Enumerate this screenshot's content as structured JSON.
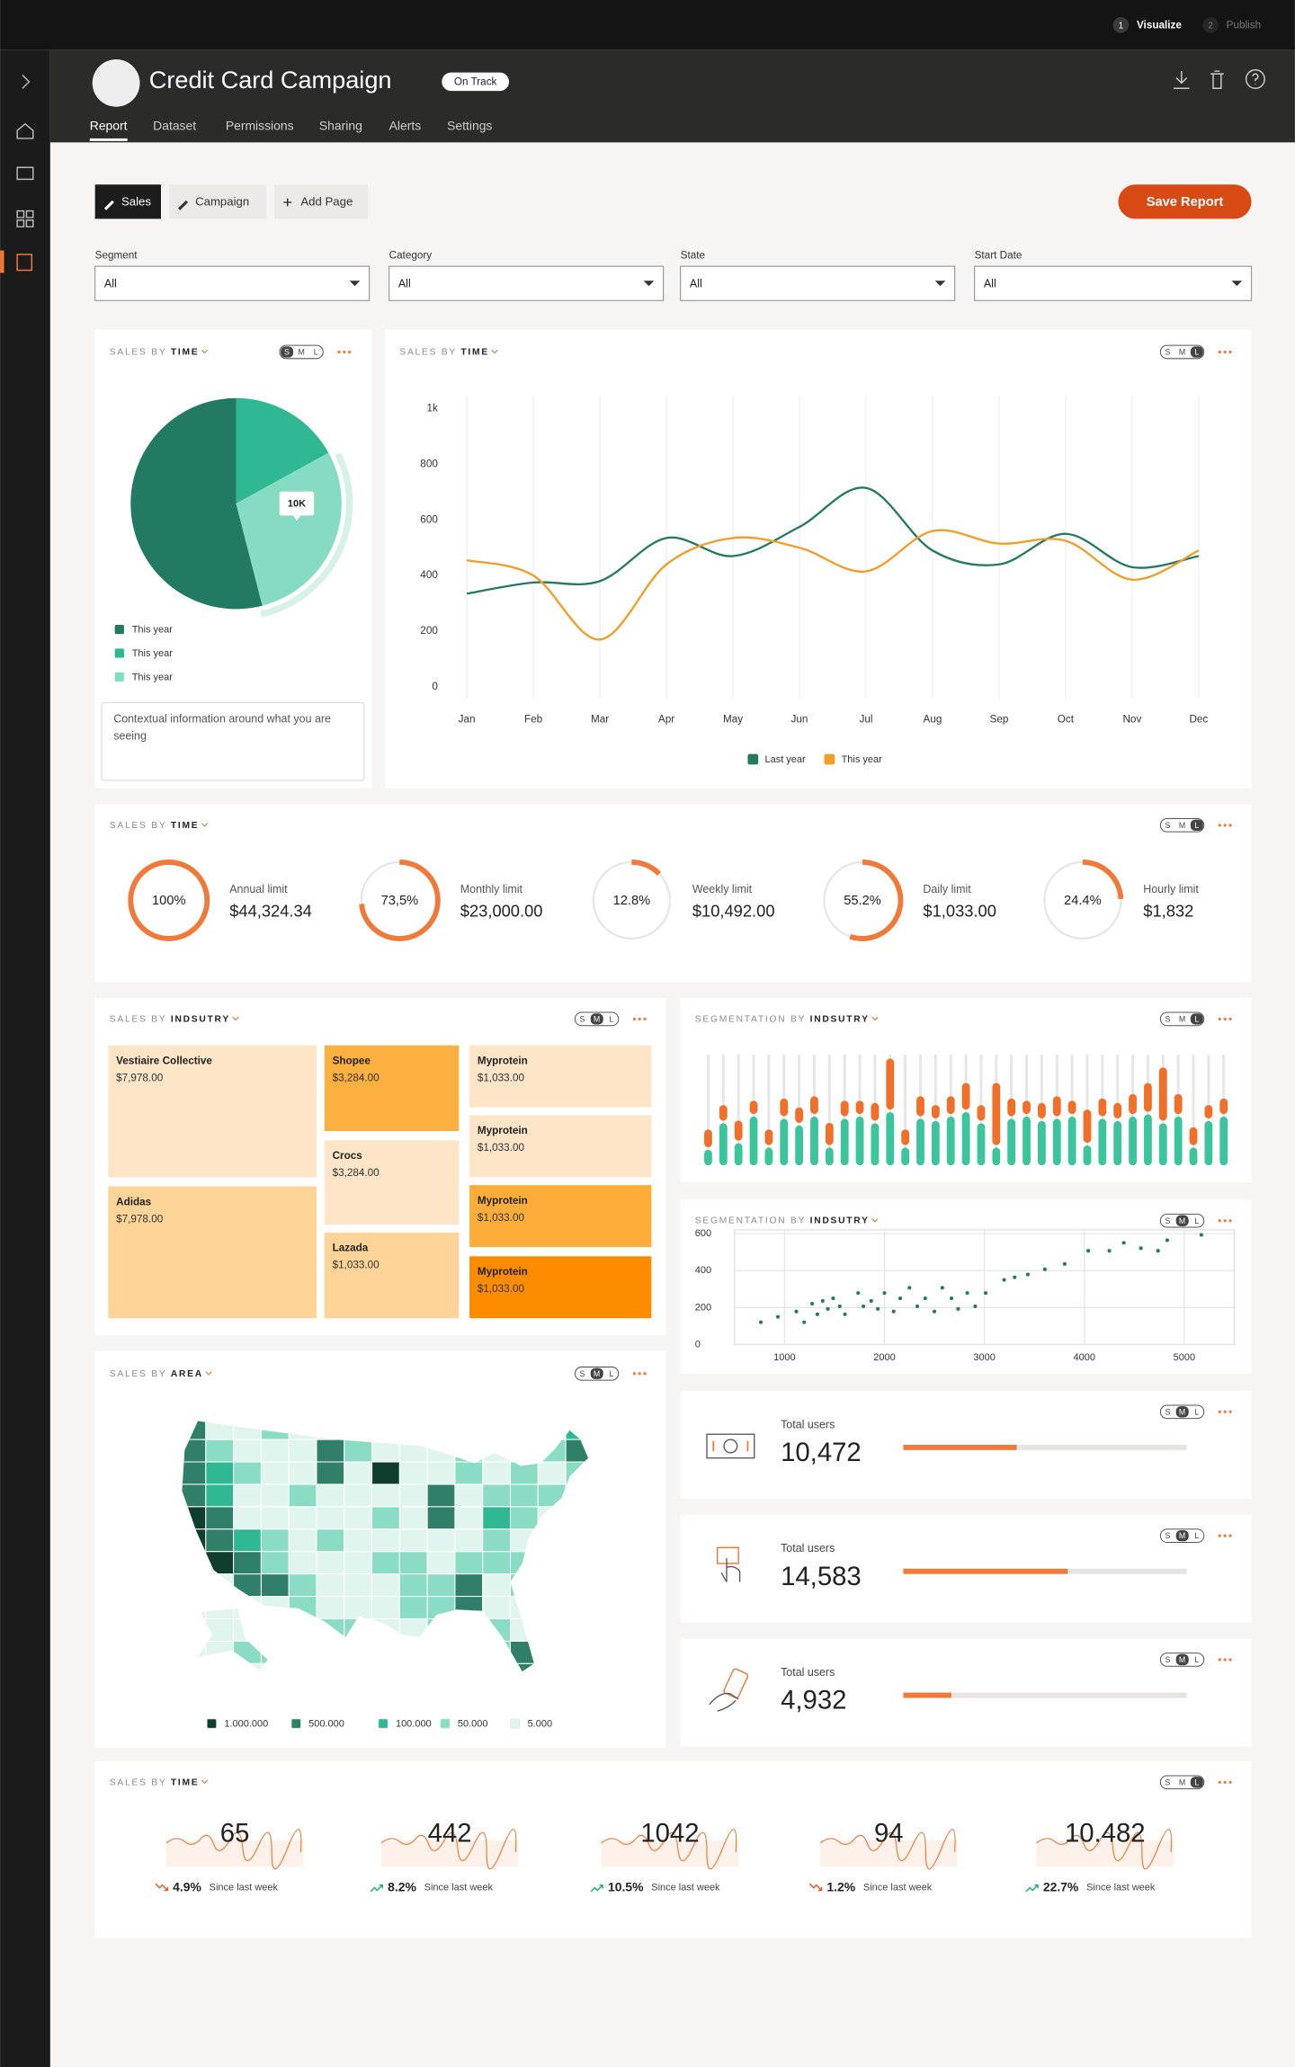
{
  "topbar": {
    "steps": [
      {
        "number": "1",
        "label": "Visualize"
      },
      {
        "number": "2",
        "label": "Publish"
      }
    ]
  },
  "header": {
    "title": "Credit Card Campaign",
    "status": "On Track",
    "tabs": [
      "Report",
      "Dataset",
      "Permissions",
      "Sharing",
      "Alerts",
      "Settings"
    ],
    "active_tab": "Report"
  },
  "toolbar": {
    "pages": [
      "Sales",
      "Campaign"
    ],
    "active_page": "Sales",
    "add_page": "Add Page",
    "save": "Save Report"
  },
  "filters": [
    {
      "label": "Segment",
      "value": "All"
    },
    {
      "label": "Category",
      "value": "All"
    },
    {
      "label": "State",
      "value": "All"
    },
    {
      "label": "Start Date",
      "value": "All"
    }
  ],
  "size_options": [
    "S",
    "M",
    "L"
  ],
  "widgets": {
    "pie": {
      "title": [
        "SALES BY",
        "TIME"
      ],
      "size": "S",
      "chart": {
        "type": "pie",
        "categories": [
          "This year",
          "This year",
          "This year"
        ],
        "values": [
          54,
          17,
          29
        ],
        "colors": [
          "#237a63",
          "#2fb892",
          "#86dcc3"
        ],
        "annotation": "10K"
      },
      "note": "Contextual information around what you are seeing"
    },
    "line": {
      "title": [
        "SALES BY",
        "TIME"
      ],
      "size": "L",
      "chart": {
        "type": "line",
        "categories": [
          "Jan",
          "Feb",
          "Mar",
          "Apr",
          "May",
          "Jun",
          "Jul",
          "Aug",
          "Sep",
          "Oct",
          "Nov",
          "Dec"
        ],
        "series": [
          {
            "name": "Last year",
            "color": "#237a63",
            "values": [
              335,
              375,
              380,
              535,
              470,
              575,
              715,
              490,
              440,
              550,
              430,
              470
            ]
          },
          {
            "name": "This year",
            "color": "#f39c26",
            "values": [
              455,
              400,
              170,
              440,
              535,
              500,
              415,
              560,
              515,
              525,
              385,
              490
            ]
          }
        ],
        "ylim": [
          0,
          1000
        ],
        "yticks": [
          0,
          200,
          400,
          600,
          800,
          {
            "value": 1000,
            "label": "1k"
          }
        ],
        "grid": true
      }
    },
    "gauges": {
      "title": [
        "SALES BY",
        "TIME"
      ],
      "size": "L",
      "chart": {
        "type": "gauge",
        "categories": [
          "Annual limit",
          "Monthly limit",
          "Weekly limit",
          "Daily limit",
          "Hourly limit"
        ],
        "amounts": [
          "$44,324.34",
          "$23,000.00",
          "$10,492.00",
          "$1,033.00",
          "$1,832"
        ],
        "values": [
          100,
          73.5,
          12.8,
          55.2,
          24.4
        ],
        "value_labels": [
          "100%",
          "73,5%",
          "12.8%",
          "55.2%",
          "24.4%"
        ],
        "ylim": [
          0,
          100
        ],
        "color": "#f07a3a"
      }
    },
    "treemap": {
      "title": [
        "SALES BY",
        "INDSUTRY"
      ],
      "size": "M",
      "items": [
        {
          "name": "Vestiaire Collective",
          "amount": "$7,978.00",
          "color": "#fee5c8"
        },
        {
          "name": "Adidas",
          "amount": "$7,978.00",
          "color": "#fed498"
        },
        {
          "name": "Shopee",
          "amount": "$3,284.00",
          "color": "#fbb040"
        },
        {
          "name": "Crocs",
          "amount": "$3,284.00",
          "color": "#fee5c8"
        },
        {
          "name": "Lazada",
          "amount": "$1,033.00",
          "color": "#fed498"
        },
        {
          "name": "Myprotein",
          "amount": "$1,033.00",
          "color": "#fee5c8"
        },
        {
          "name": "Myprotein",
          "amount": "$1,033.00",
          "color": "#fee5c8"
        },
        {
          "name": "Myprotein",
          "amount": "$1,033.00",
          "color": "#fdae3a"
        },
        {
          "name": "Myprotein",
          "amount": "$1,033.00",
          "color": "#fd8c00"
        }
      ]
    },
    "segmentation": {
      "title": [
        "SEGMENTATION BY",
        "INDSUTRY"
      ],
      "size": "L",
      "chart": {
        "type": "bar",
        "stacked": true,
        "ylim": [
          0,
          100
        ],
        "series": [
          {
            "color": "#3cc49d",
            "values": [
              14,
              38,
              20,
              44,
              16,
              42,
              36,
              44,
              16,
              42,
              44,
              38,
              48,
              16,
              42,
              40,
              44,
              48,
              38,
              16,
              42,
              44,
              40,
              42,
              44,
              18,
              42,
              40,
              44,
              46,
              38,
              44,
              16,
              40,
              44
            ]
          },
          {
            "color": "#f0702a",
            "values": [
              16,
              14,
              18,
              12,
              14,
              16,
              14,
              16,
              20,
              14,
              12,
              16,
              46,
              14,
              18,
              12,
              16,
              24,
              14,
              56,
              16,
              12,
              14,
              18,
              12,
              30,
              16,
              14,
              18,
              26,
              48,
              18,
              16,
              12,
              14
            ]
          }
        ]
      }
    },
    "scatter": {
      "title": [
        "SEGMENTATION BY",
        "INDSUTRY"
      ],
      "size": "M",
      "chart": {
        "type": "scatter",
        "color": "#237a63",
        "x": [
          763,
          934,
          1118,
          1197,
          1276,
          1329,
          1382,
          1434,
          1487,
          1553,
          1605,
          1737,
          1789,
          1868,
          1934,
          2000,
          2092,
          2158,
          2250,
          2329,
          2408,
          2500,
          2579,
          2671,
          2737,
          2829,
          2908,
          3013,
          3197,
          3303,
          3434,
          3605,
          3803,
          4039,
          4250,
          4395,
          4566,
          4737,
          4829,
          5171
        ],
        "values": [
          121,
          150,
          179,
          121,
          221,
          164,
          236,
          193,
          250,
          207,
          164,
          279,
          207,
          236,
          193,
          279,
          179,
          250,
          307,
          207,
          250,
          179,
          307,
          250,
          193,
          279,
          207,
          279,
          350,
          364,
          379,
          407,
          436,
          507,
          507,
          550,
          521,
          507,
          564,
          593
        ],
        "xlim": [
          500,
          5500
        ],
        "xticks": [
          1000,
          2000,
          3000,
          4000,
          5000
        ],
        "ylim": [
          0,
          620
        ],
        "yticks": [
          0,
          200,
          400,
          600
        ],
        "grid": true
      }
    },
    "map": {
      "title": [
        "SALES BY",
        "AREA"
      ],
      "size": "M",
      "legend": [
        {
          "label": "1.000.000",
          "color": "#0f3d2e"
        },
        {
          "label": "500.000",
          "color": "#2f7f69"
        },
        {
          "label": "100.000",
          "color": "#2fb892"
        },
        {
          "label": "50.000",
          "color": "#8adcc4"
        },
        {
          "label": "5.000",
          "color": "#dff5ee"
        }
      ]
    },
    "kpis": [
      {
        "size": "M",
        "label": "Total users",
        "value": "10,472",
        "progress": 40,
        "color": "#f07a3a"
      },
      {
        "size": "M",
        "label": "Total users",
        "value": "14,583",
        "progress": 58,
        "color": "#f07a3a"
      },
      {
        "size": "M",
        "label": "Total users",
        "value": "4,932",
        "progress": 17,
        "color": "#f07a3a"
      }
    ],
    "trends": {
      "title": [
        "SALES BY",
        "TIME"
      ],
      "size": "L",
      "items": [
        {
          "value": "65",
          "change": "4.9%",
          "direction": "down",
          "caption": "Since last week"
        },
        {
          "value": "442",
          "change": "8.2%",
          "direction": "up",
          "caption": "Since last week"
        },
        {
          "value": "1042",
          "change": "10.5%",
          "direction": "up",
          "caption": "Since last week"
        },
        {
          "value": "94",
          "change": "1.2%",
          "direction": "down",
          "caption": "Since last week"
        },
        {
          "value": "10.482",
          "change": "22.7%",
          "direction": "up",
          "caption": "Since last week"
        }
      ]
    }
  }
}
